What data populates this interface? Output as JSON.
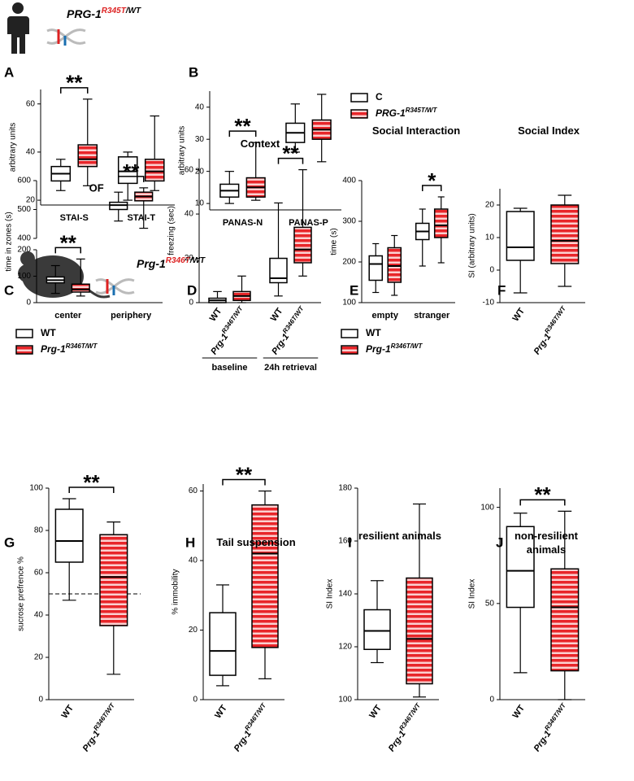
{
  "header": {
    "human": {
      "gene": "PRG-1",
      "mutation": "R345T",
      "allele": "/WT"
    },
    "mouse": {
      "gene": "Prg-1",
      "mutation": "R346T",
      "allele": "/WT"
    }
  },
  "chart_data": [
    {
      "type": "box",
      "panel": "A",
      "ylabel": "arbitrary units",
      "categories": [
        "STAI-S",
        "STAI-T"
      ],
      "x_labels": "categories",
      "ylim": [
        18,
        66
      ],
      "yticks": [
        20,
        40,
        60
      ],
      "significance": [
        "**",
        null
      ],
      "series": [
        {
          "name": "C",
          "color": "#ffffff",
          "values": [
            [
              24,
              28,
              31,
              34,
              37
            ],
            [
              20,
              27,
              32,
              38,
              40
            ]
          ]
        },
        {
          "name": "PRG-1",
          "name_sup": "R345T/WT",
          "color": "#e8262a",
          "values": [
            [
              26,
              34,
              37,
              43,
              62
            ],
            [
              24,
              28,
              32,
              37,
              55
            ]
          ]
        }
      ]
    },
    {
      "type": "box",
      "panel": "B",
      "ylabel": "arbitrary units",
      "categories": [
        "PANAS-N",
        "PANAS-P"
      ],
      "x_labels": "categories",
      "legend": "right",
      "ylim": [
        8,
        45
      ],
      "yticks": [
        10,
        20,
        30,
        40
      ],
      "significance": [
        "**",
        null
      ],
      "series": [
        {
          "name": "C",
          "color": "#ffffff",
          "values": [
            [
              10,
              12,
              14,
              16,
              20
            ],
            [
              26,
              29,
              32,
              35,
              41
            ]
          ]
        },
        {
          "name": "PRG-1",
          "name_sup": "R345T/WT",
          "color": "#e8262a",
          "values": [
            [
              11,
              12,
              15,
              18,
              29
            ],
            [
              23,
              30,
              33,
              36,
              44
            ]
          ]
        }
      ]
    },
    {
      "type": "box",
      "panel": "C",
      "ylabel": "time in zones (s)",
      "annotation": "OF",
      "categories": [
        "center",
        "periphery"
      ],
      "x_labels": "categories",
      "legend": "below",
      "ylim": [
        0,
        600
      ],
      "axis_break": [
        200,
        400
      ],
      "yticks": [
        0,
        100,
        200,
        400,
        500,
        600
      ],
      "significance": [
        "**",
        "**"
      ],
      "series": [
        {
          "name": "WT",
          "color": "#ffffff",
          "values": [
            [
              35,
              75,
              85,
              97,
              140
            ],
            [
              460,
              500,
              515,
              525,
              560
            ]
          ]
        },
        {
          "name": "Prg-1",
          "name_sup": "R346T/WT",
          "color": "#e8262a",
          "values": [
            [
              25,
              40,
              50,
              70,
              165
            ],
            [
              435,
              530,
              545,
              560,
              575
            ]
          ]
        }
      ]
    },
    {
      "type": "box",
      "panel": "D",
      "title": "Context",
      "ylabel": "freezing (sec)",
      "categories": [
        "baseline",
        "24h retrieval"
      ],
      "x_labels": "both",
      "ylim": [
        0,
        65
      ],
      "yticks": [
        0,
        20,
        40,
        60
      ],
      "significance": [
        null,
        "**"
      ],
      "series": [
        {
          "name": "WT",
          "color": "#ffffff",
          "values": [
            [
              0,
              0,
              1,
              2,
              5
            ],
            [
              3,
              9,
              11,
              20,
              45
            ]
          ]
        },
        {
          "name": "Prg-1",
          "name_sup": "R346T/WT",
          "color": "#e8262a",
          "values": [
            [
              0,
              1,
              3,
              5,
              12
            ],
            [
              12,
              18,
              24,
              34,
              60
            ]
          ]
        }
      ]
    },
    {
      "type": "box",
      "panel": "E",
      "title": "Social Interaction",
      "ylabel": "time (s)",
      "categories": [
        "empty",
        "stranger"
      ],
      "x_labels": "categories",
      "legend": "below",
      "ylim": [
        100,
        400
      ],
      "yticks": [
        100,
        200,
        300,
        400
      ],
      "significance": [
        null,
        "*"
      ],
      "series": [
        {
          "name": "WT",
          "color": "#ffffff",
          "values": [
            [
              125,
              155,
              195,
              215,
              245
            ],
            [
              190,
              255,
              275,
              295,
              330
            ]
          ]
        },
        {
          "name": "Prg-1",
          "name_sup": "R346T/WT",
          "color": "#e8262a",
          "values": [
            [
              118,
              150,
              190,
              235,
              265
            ],
            [
              198,
              260,
              290,
              330,
              360
            ]
          ]
        }
      ]
    },
    {
      "type": "box",
      "panel": "F",
      "title": "Social Index",
      "ylabel": "SI (arbitrary units)",
      "categories": [
        null
      ],
      "x_labels": "series",
      "ylim": [
        -10,
        25
      ],
      "yticks": [
        -10,
        0,
        10,
        20
      ],
      "significance": [
        null
      ],
      "series": [
        {
          "name": "WT",
          "color": "#ffffff",
          "values": [
            [
              -7,
              3,
              7,
              18,
              19
            ]
          ]
        },
        {
          "name": "Prg-1",
          "name_sup": "R346T/WT",
          "color": "#e8262a",
          "values": [
            [
              -5,
              2,
              9,
              20,
              23
            ]
          ]
        }
      ]
    },
    {
      "type": "box",
      "panel": "G",
      "ylabel": "sucrose prefrence %",
      "categories": [
        null
      ],
      "x_labels": "series",
      "reference_line": 50,
      "ylim": [
        0,
        100
      ],
      "yticks": [
        0,
        20,
        40,
        60,
        80,
        100
      ],
      "significance": [
        "**"
      ],
      "series": [
        {
          "name": "WT",
          "color": "#ffffff",
          "values": [
            [
              47,
              65,
              75,
              90,
              95
            ]
          ]
        },
        {
          "name": "Prg-1",
          "name_sup": "R346T/WT",
          "color": "#e8262a",
          "values": [
            [
              12,
              35,
              58,
              78,
              84
            ]
          ]
        }
      ]
    },
    {
      "type": "box",
      "panel": "H",
      "title": "Tail suspension",
      "ylabel": "% immobility",
      "categories": [
        null
      ],
      "x_labels": "series",
      "ylim": [
        0,
        62
      ],
      "yticks": [
        0,
        20,
        40,
        60
      ],
      "significance": [
        "**"
      ],
      "series": [
        {
          "name": "WT",
          "color": "#ffffff",
          "values": [
            [
              4,
              7,
              14,
              25,
              33
            ]
          ]
        },
        {
          "name": "Prg-1",
          "name_sup": "R346T/WT",
          "color": "#e8262a",
          "values": [
            [
              6,
              15,
              42,
              56,
              60
            ]
          ]
        }
      ]
    },
    {
      "type": "box",
      "panel": "I",
      "title": "resilient animals",
      "ylabel": "SI Index",
      "categories": [
        null
      ],
      "x_labels": "series",
      "ylim": [
        100,
        180
      ],
      "yticks": [
        100,
        120,
        140,
        160,
        180
      ],
      "significance": [
        null
      ],
      "series": [
        {
          "name": "WT",
          "color": "#ffffff",
          "values": [
            [
              114,
              119,
              126,
              134,
              145
            ]
          ]
        },
        {
          "name": "Prg-1",
          "name_sup": "R346T/WT",
          "color": "#e8262a",
          "values": [
            [
              101,
              106,
              123,
              146,
              174
            ]
          ]
        }
      ]
    },
    {
      "type": "box",
      "panel": "J",
      "title": "non-resilient animals",
      "ylabel": "SI Index",
      "categories": [
        null
      ],
      "x_labels": "series",
      "ylim": [
        0,
        110
      ],
      "yticks": [
        0,
        50,
        100
      ],
      "significance": [
        "**"
      ],
      "series": [
        {
          "name": "WT",
          "color": "#ffffff",
          "values": [
            [
              14,
              48,
              67,
              90,
              97
            ]
          ]
        },
        {
          "name": "Prg-1",
          "name_sup": "R346T/WT",
          "color": "#e8262a",
          "values": [
            [
              0,
              15,
              48,
              68,
              98
            ]
          ]
        }
      ]
    }
  ]
}
